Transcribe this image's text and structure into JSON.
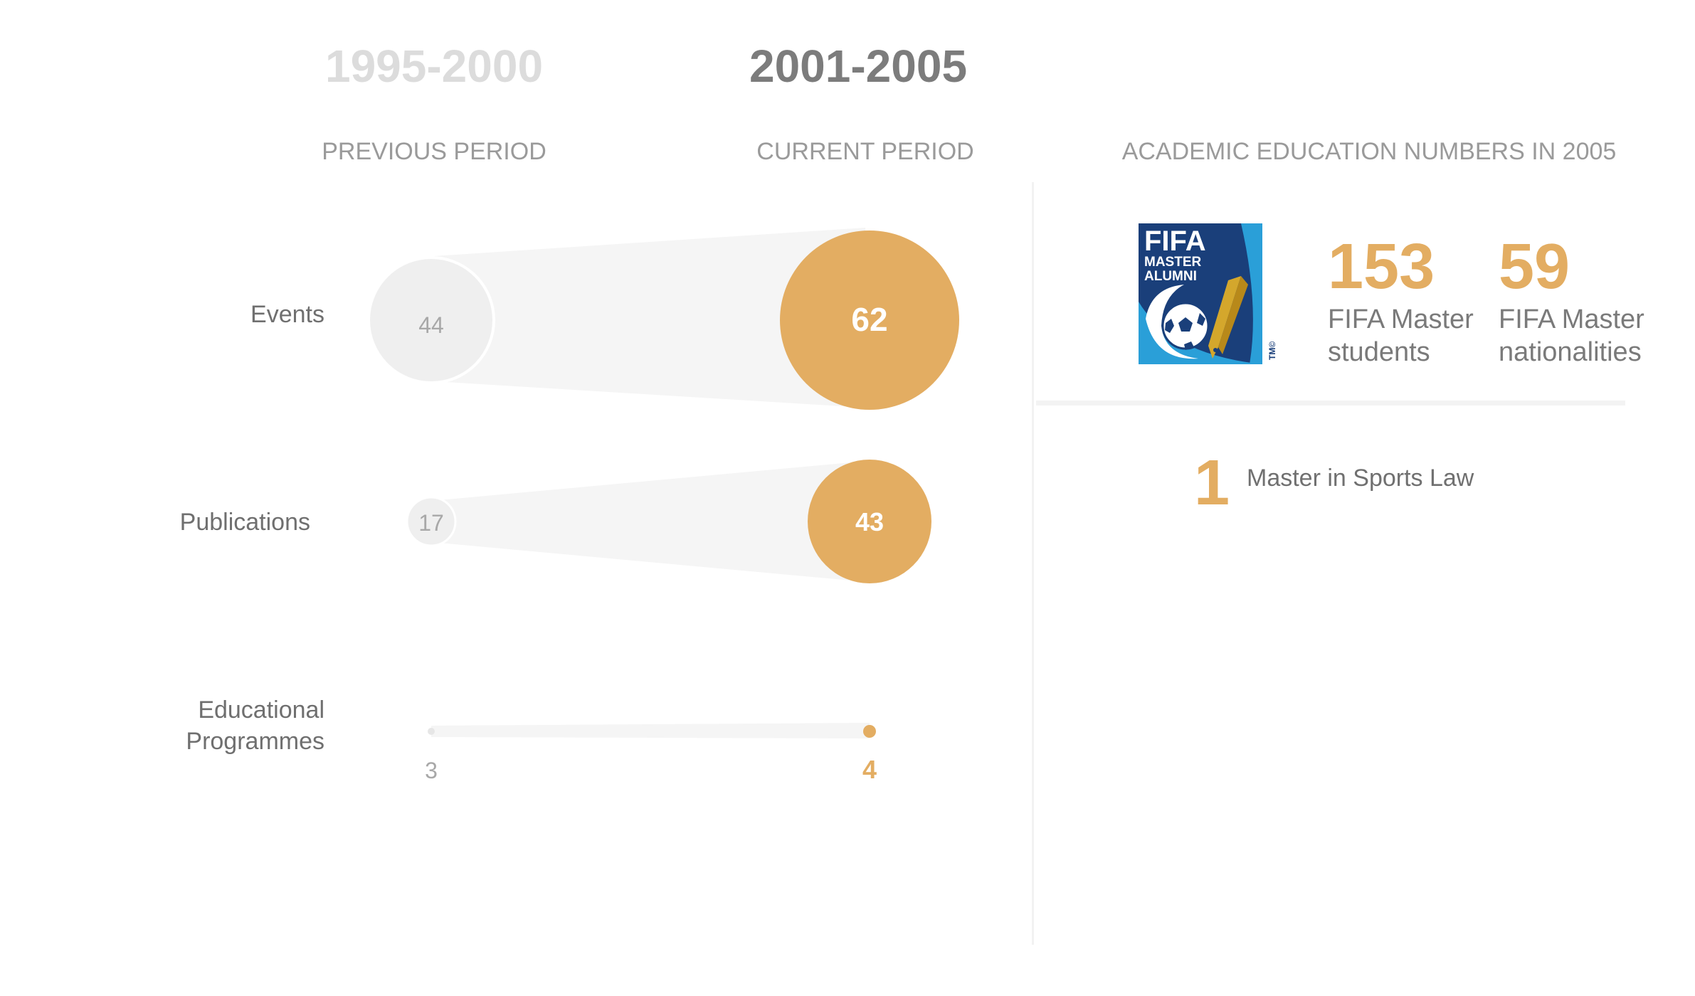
{
  "periods": {
    "previous": {
      "years": "1995-2000",
      "label": "PREVIOUS PERIOD"
    },
    "current": {
      "years": "2001-2005",
      "label": "CURRENT PERIOD"
    }
  },
  "comparison": {
    "rows": [
      {
        "key": "events",
        "label": "Events",
        "previous": "44",
        "current": "62"
      },
      {
        "key": "publications",
        "label": "Publications",
        "previous": "17",
        "current": "43"
      },
      {
        "key": "programmes",
        "label": "Educational Programmes",
        "label_line1": "Educational",
        "label_line2": "Programmes",
        "previous": "3",
        "current": "4"
      }
    ]
  },
  "academic": {
    "heading": "ACADEMIC EDUCATION NUMBERS IN 2005",
    "logo": {
      "icon": "fifa-master-alumni-logo",
      "line1": "FIFA",
      "line2": "MASTER",
      "line3": "ALUMNI",
      "tm": "TM©"
    },
    "stats": [
      {
        "number": "153",
        "label_line1": "FIFA Master",
        "label_line2": "students"
      },
      {
        "number": "59",
        "label_line1": "FIFA Master",
        "label_line2": "nationalities"
      }
    ],
    "law": {
      "number": "1",
      "label": "Master in Sports Law"
    }
  },
  "colors": {
    "accent": "#e3ad62",
    "previous_fill": "#efefef",
    "cone_fill": "#f5f5f5",
    "text_dark": "#7c7c7c",
    "text_light": "#dcdcdc",
    "fifa_blue": "#1a3f7a",
    "fifa_light_blue": "#2a9fd8",
    "fifa_gold": "#d4a72c"
  }
}
